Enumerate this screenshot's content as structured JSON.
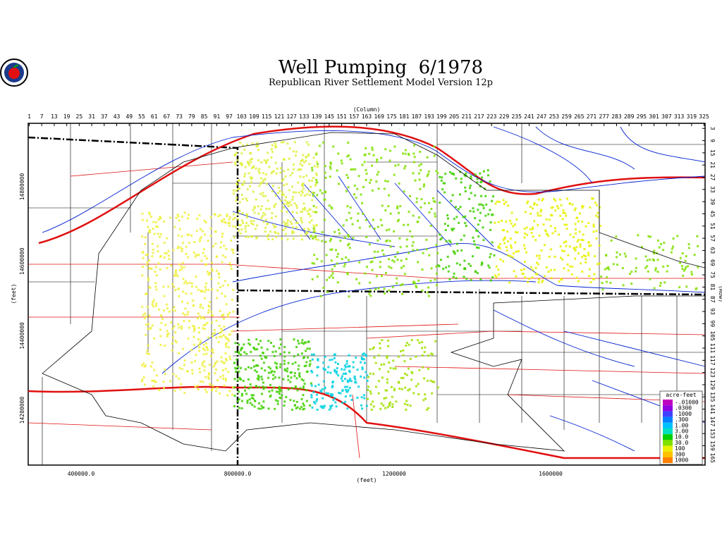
{
  "header": {
    "title": "Well Pumping  6/1978",
    "subtitle": "Republican River Settlement Model Version 12p"
  },
  "top_axis": {
    "label": "(Column)",
    "ticks": [
      1,
      7,
      13,
      19,
      25,
      31,
      37,
      43,
      49,
      55,
      61,
      67,
      73,
      79,
      85,
      91,
      97,
      103,
      109,
      115,
      121,
      127,
      133,
      139,
      145,
      151,
      157,
      163,
      169,
      175,
      181,
      187,
      193,
      199,
      205,
      211,
      217,
      223,
      229,
      235,
      241,
      247,
      253,
      259,
      265,
      271,
      277,
      283,
      289,
      295,
      301,
      307,
      313,
      319,
      325
    ]
  },
  "right_axis": {
    "label": "(Row)",
    "ticks": [
      3,
      9,
      15,
      21,
      27,
      33,
      39,
      45,
      51,
      57,
      63,
      69,
      75,
      81,
      87,
      93,
      99,
      105,
      111,
      117,
      123,
      129,
      135,
      141,
      147,
      153,
      159,
      165
    ]
  },
  "left_axis": {
    "label": "(feet)",
    "ticks": [
      "14800000",
      "14600000",
      "14400000",
      "14200000"
    ]
  },
  "bottom_axis": {
    "label": "(feet)",
    "ticks": [
      "400000.0",
      "800000.0",
      "1200000",
      "1600000"
    ]
  },
  "legend": {
    "title": "acre-feet",
    "entries": [
      {
        "label": "-.01000",
        "color": "#c000c0"
      },
      {
        "label": ".0300",
        "color": "#9000e0"
      },
      {
        "label": ".1000",
        "color": "#4040ff"
      },
      {
        "label": ".300",
        "color": "#0080ff"
      },
      {
        "label": "1.00",
        "color": "#00c0ff"
      },
      {
        "label": "3.00",
        "color": "#00e0c0"
      },
      {
        "label": "10.0",
        "color": "#00d000"
      },
      {
        "label": "30.0",
        "color": "#80e000"
      },
      {
        "label": "100",
        "color": "#e8f000"
      },
      {
        "label": "300",
        "color": "#ffc000"
      },
      {
        "label": "1000",
        "color": "#ff8000"
      }
    ]
  }
}
